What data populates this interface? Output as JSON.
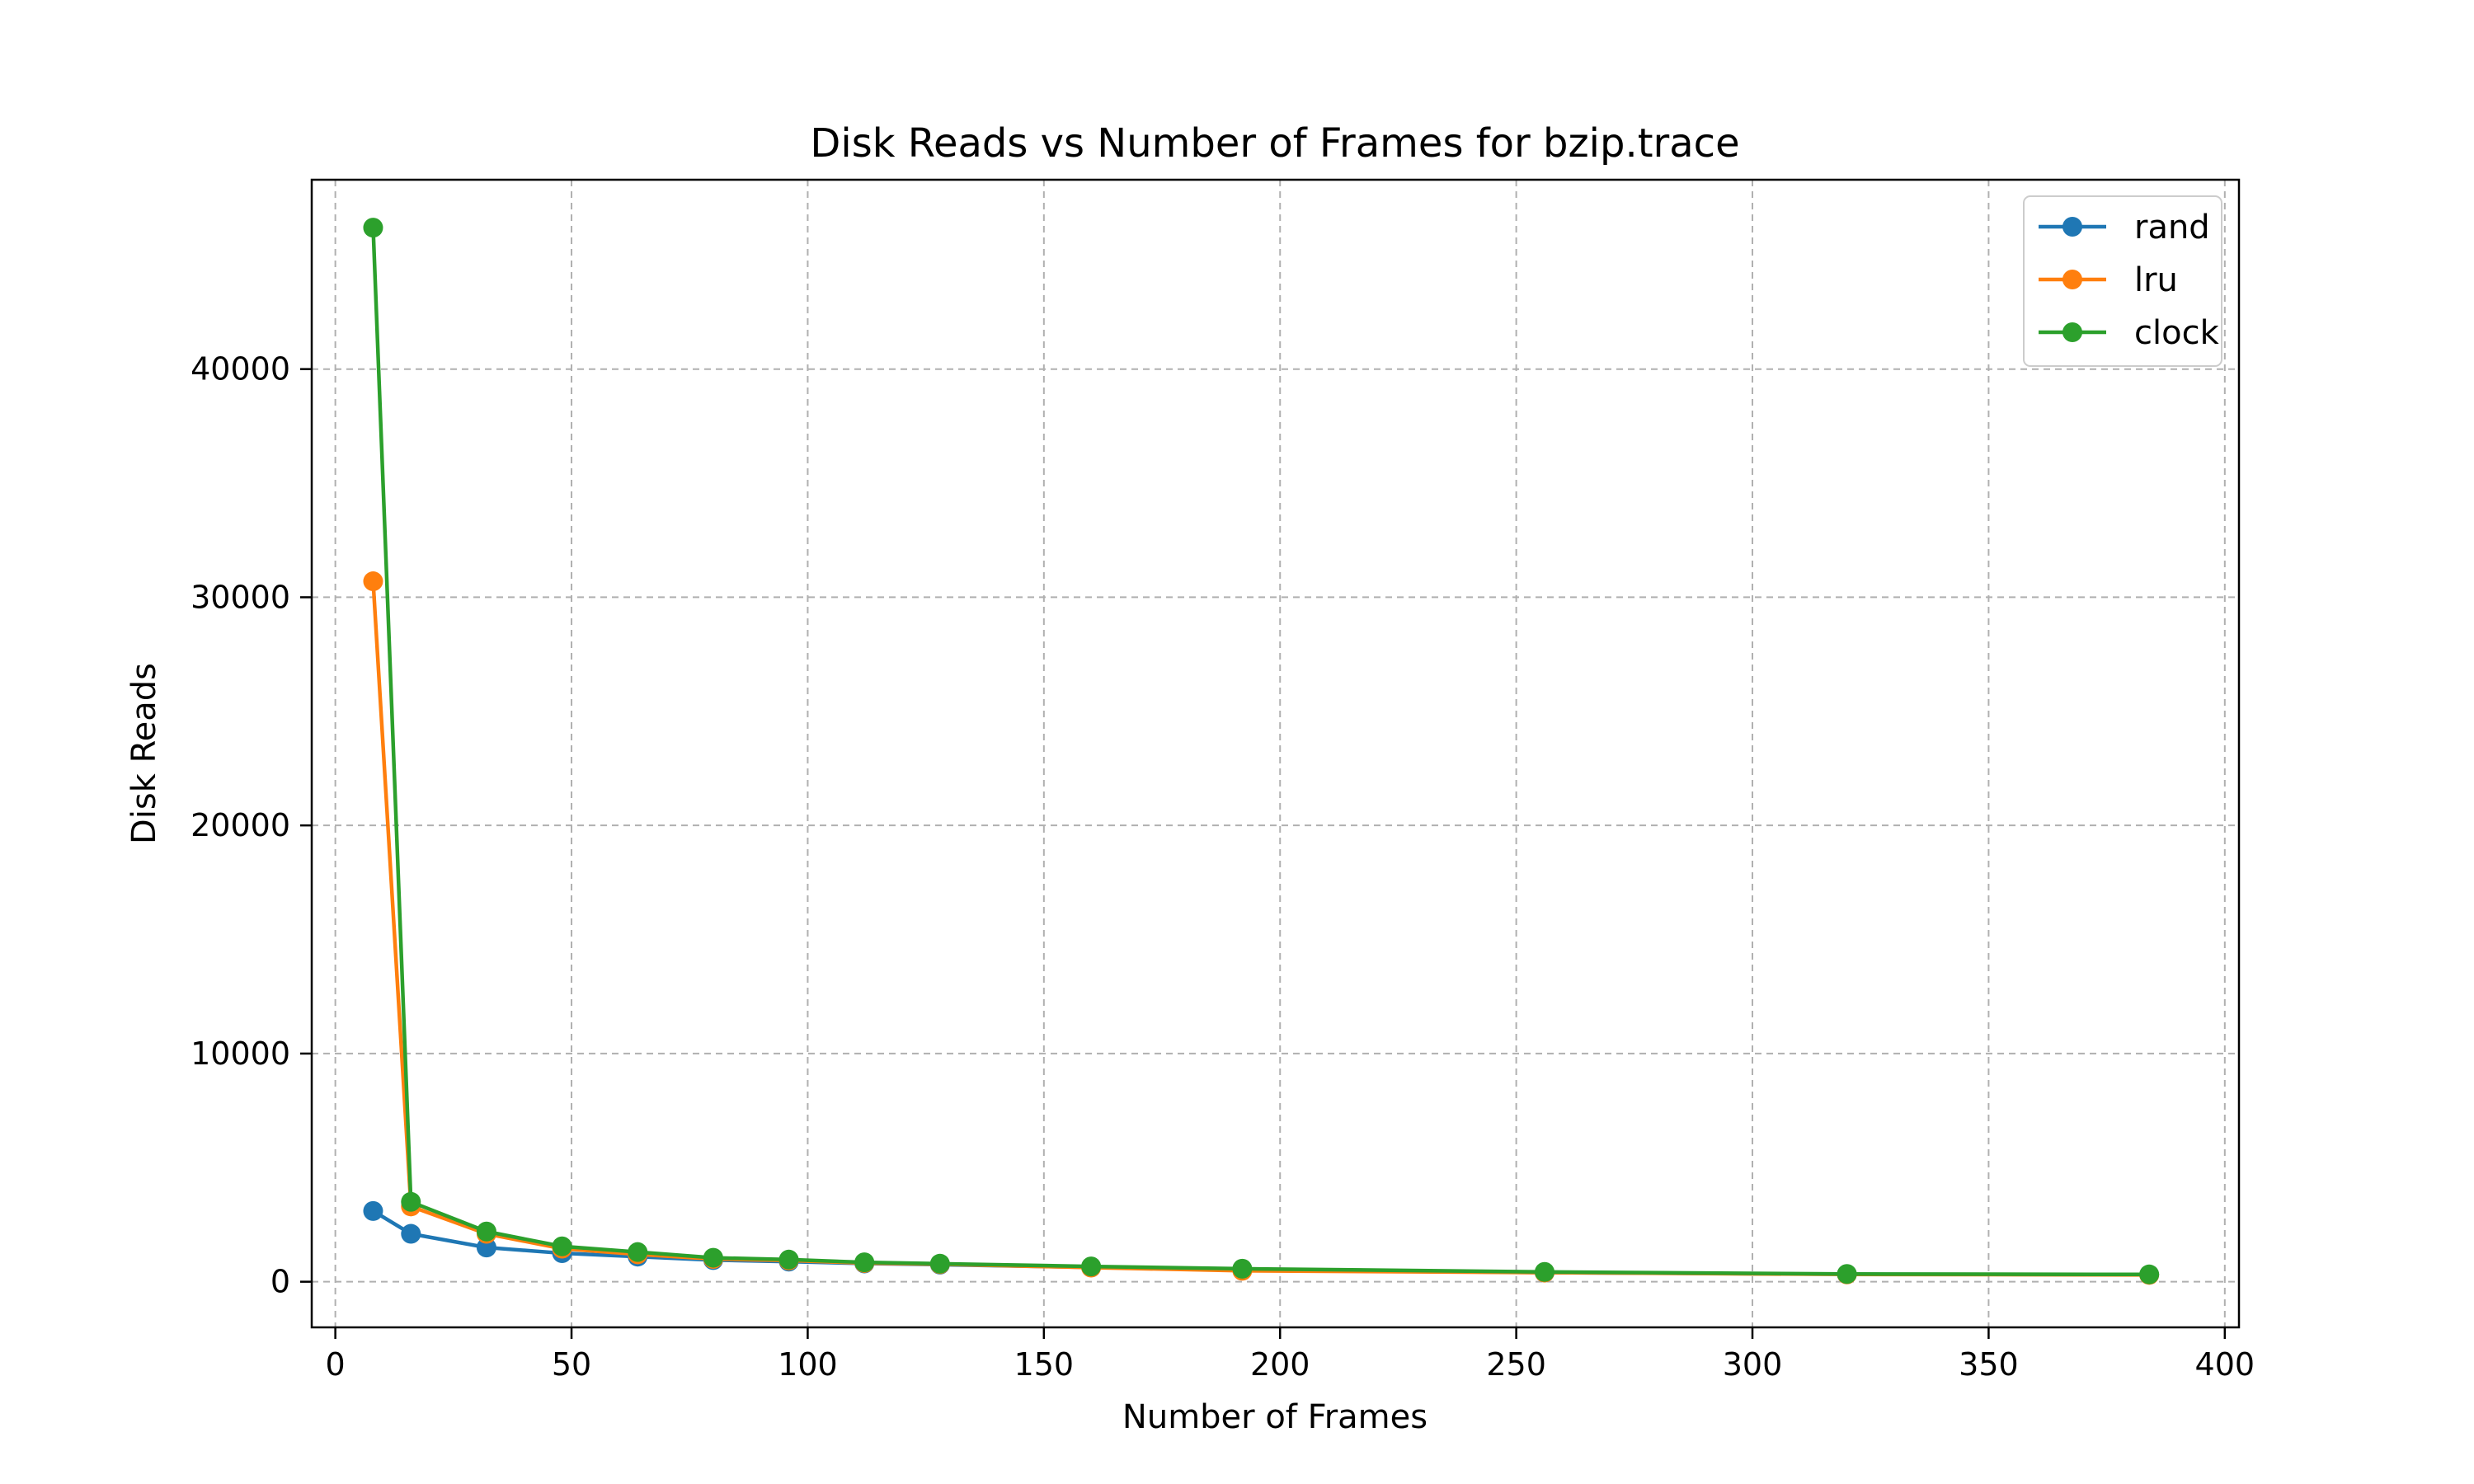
{
  "chart_data": {
    "type": "line",
    "title": "Disk Reads vs Number of Frames for bzip.trace",
    "xlabel": "Number of Frames",
    "ylabel": "Disk Reads",
    "xlim": [
      -5,
      403
    ],
    "ylim": [
      -2000,
      48300
    ],
    "xticks": [
      0,
      50,
      100,
      150,
      200,
      250,
      300,
      350,
      400
    ],
    "yticks": [
      0,
      10000,
      20000,
      30000,
      40000
    ],
    "grid": true,
    "legend_position": "top-right",
    "x": [
      8,
      16,
      32,
      48,
      64,
      80,
      96,
      112,
      128,
      160,
      192,
      256,
      320,
      384
    ],
    "series": [
      {
        "name": "rand",
        "color": "#1f77b4",
        "values": [
          3100,
          2100,
          1500,
          1250,
          1100,
          950,
          880,
          800,
          750,
          630,
          530,
          400,
          330,
          310
        ]
      },
      {
        "name": "lru",
        "color": "#ff7f0e",
        "values": [
          30700,
          3300,
          2100,
          1450,
          1200,
          1000,
          930,
          820,
          770,
          620,
          480,
          400,
          320,
          300
        ]
      },
      {
        "name": "clock",
        "color": "#2ca02c",
        "values": [
          46200,
          3500,
          2200,
          1550,
          1300,
          1050,
          970,
          850,
          790,
          670,
          570,
          430,
          340,
          320
        ]
      }
    ]
  }
}
